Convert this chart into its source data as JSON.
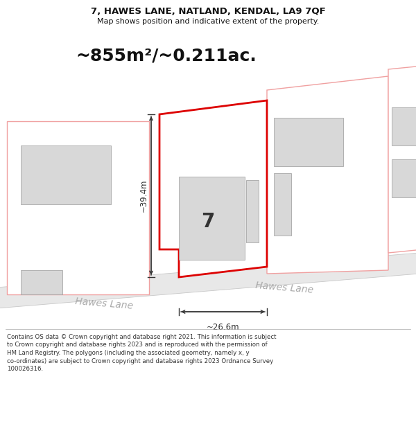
{
  "title_line1": "7, HAWES LANE, NATLAND, KENDAL, LA9 7QF",
  "title_line2": "Map shows position and indicative extent of the property.",
  "area_text": "~855m²/~0.211ac.",
  "label_height": "~39.4m",
  "label_width": "~26.6m",
  "label_number": "7",
  "road_label": "Hawes Lane",
  "footer_lines": [
    "Contains OS data © Crown copyright and database right 2021. This information is subject",
    "to Crown copyright and database rights 2023 and is reproduced with the permission of",
    "HM Land Registry. The polygons (including the associated geometry, namely x, y",
    "co-ordinates) are subject to Crown copyright and database rights 2023 Ordnance Survey",
    "100026316."
  ],
  "bg_color": "#ffffff",
  "road_fill": "#e8e8e8",
  "road_edge": "#c8c8c8",
  "property_color": "#dd0000",
  "property_fill": "#ffffff",
  "neighbor_color": "#f0a0a0",
  "neighbor_fill": "#ffffff",
  "building_fill": "#d8d8d8",
  "building_edge": "#999999",
  "dim_color": "#333333",
  "road_text_color": "#aaaaaa",
  "footer_color": "#333333",
  "title_color": "#111111"
}
